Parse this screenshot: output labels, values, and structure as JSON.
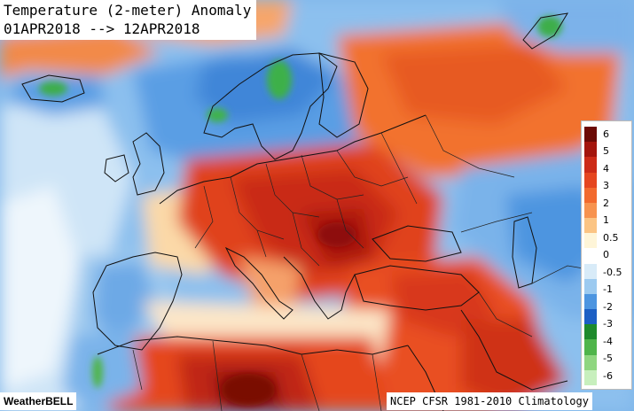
{
  "title": {
    "line1": "Temperature (2-meter) Anomaly",
    "line2": "01APR2018 --> 12APR2018"
  },
  "legend": {
    "ticks": [
      "6",
      "5",
      "4",
      "3",
      "2",
      "1",
      "0.5",
      "0",
      "-0.5",
      "-1",
      "-2",
      "-3",
      "-4",
      "-5",
      "-6"
    ],
    "colors": [
      "#6b0a05",
      "#a3150c",
      "#cc2b17",
      "#e5461f",
      "#f26a2e",
      "#f7934f",
      "#fbc483",
      "#fef5d8",
      "#ffffff",
      "#d8ebf8",
      "#9ccaf0",
      "#4d95e0",
      "#1c5fc4",
      "#1e8a2c",
      "#4fb54a",
      "#8fd680",
      "#c7efbd"
    ]
  },
  "credits": {
    "brand": "WeatherBELL",
    "source": "NCEP CFSR 1981-2010 Climatology"
  }
}
